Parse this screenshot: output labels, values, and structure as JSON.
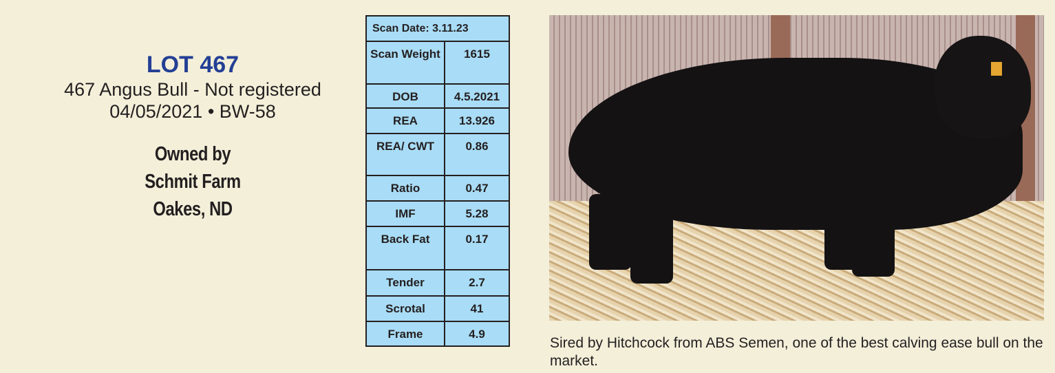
{
  "lot": {
    "title": "LOT 467",
    "description": "467 Angus Bull - Not registered",
    "dob_bw": "04/05/2021 • BW-58"
  },
  "owner": {
    "line1": "Owned by",
    "line2": "Schmit Farm",
    "line3": "Oakes, ND"
  },
  "scan_table": {
    "header": "Scan Date: 3.11.23",
    "rows": [
      {
        "label": "Scan Weight",
        "value": "1615"
      },
      {
        "label": "DOB",
        "value": "4.5.2021"
      },
      {
        "label": "REA",
        "value": "13.926"
      },
      {
        "label": "REA/ CWT",
        "value": "0.86"
      },
      {
        "label": "Ratio",
        "value": "0.47"
      },
      {
        "label": "IMF",
        "value": "5.28"
      },
      {
        "label": "Back Fat",
        "value": "0.17"
      },
      {
        "label": "Tender",
        "value": "2.7"
      },
      {
        "label": "Scrotal",
        "value": "41"
      },
      {
        "label": "Frame",
        "value": "4.9"
      }
    ]
  },
  "caption": "Sired by Hitchcock from ABS Semen, one of the best calving ease bull on the market.",
  "colors": {
    "lot_title": "#233f95",
    "table_fill": "#a9dcf6",
    "background": "#f3efd9"
  }
}
